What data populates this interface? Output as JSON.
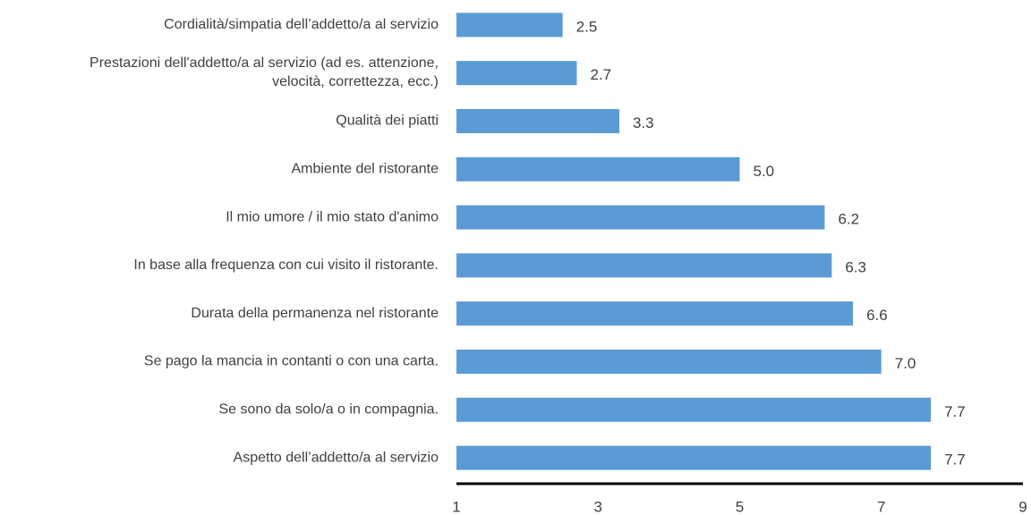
{
  "chart_data": {
    "type": "bar",
    "orientation": "horizontal",
    "categories": [
      "Cordialità/simpatia dell’addetto/a al servizio",
      "Prestazioni dell'addetto/a al servizio (ad es. attenzione,\nvelocità, correttezza, ecc.)",
      "Qualità dei piatti",
      "Ambiente del ristorante",
      "Il mio umore / il mio stato d'animo",
      "In base alla frequenza con cui visito il ristorante.",
      "Durata della permanenza nel ristorante",
      "Se pago la mancia in contanti o con una carta.",
      "Se sono da solo/a o in compagnia.",
      "Aspetto dell’addetto/a al servizio"
    ],
    "values": [
      2.5,
      2.7,
      3.3,
      5.0,
      6.2,
      6.3,
      6.6,
      7.0,
      7.7,
      7.7
    ],
    "value_labels": [
      "2.5",
      "2.7",
      "3.3",
      "5.0",
      "6.2",
      "6.3",
      "6.6",
      "7.0",
      "7.7",
      "7.7"
    ],
    "color": "#5b9bd5",
    "xlim": [
      1,
      9
    ],
    "xticks": [
      1,
      3,
      5,
      7,
      9
    ],
    "grid": false
  }
}
